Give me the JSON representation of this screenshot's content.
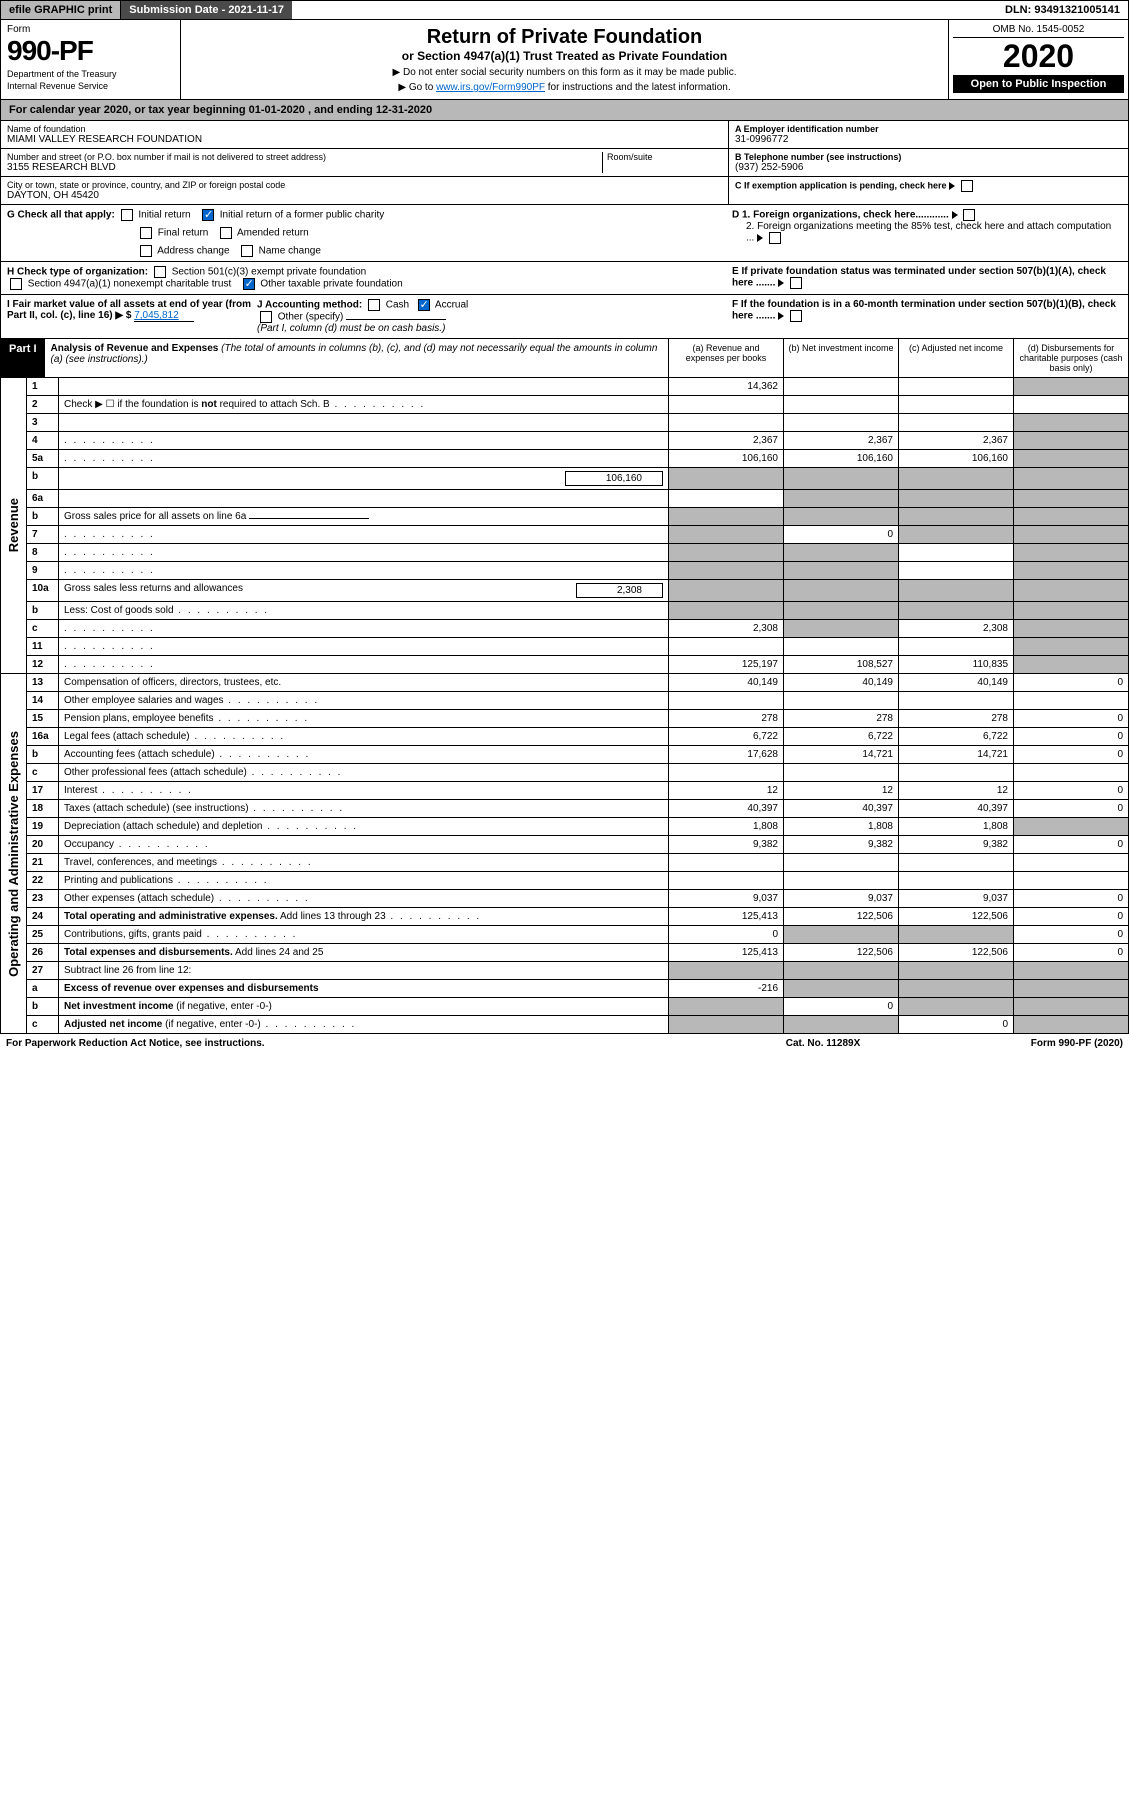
{
  "topbar": {
    "efile": "efile GRAPHIC print",
    "submission": "Submission Date - 2021-11-17",
    "dln": "DLN: 93491321005141"
  },
  "header": {
    "form_label": "Form",
    "form_number": "990-PF",
    "dept1": "Department of the Treasury",
    "dept2": "Internal Revenue Service",
    "title": "Return of Private Foundation",
    "subtitle": "or Section 4947(a)(1) Trust Treated as Private Foundation",
    "note1": "▶ Do not enter social security numbers on this form as it may be made public.",
    "note2_pre": "▶ Go to ",
    "note2_link": "www.irs.gov/Form990PF",
    "note2_post": " for instructions and the latest information.",
    "omb": "OMB No. 1545-0052",
    "year": "2020",
    "inspect": "Open to Public Inspection"
  },
  "cal_year": {
    "pre": "For calendar year 2020, or tax year beginning ",
    "begin": "01-01-2020",
    "mid": " , and ending ",
    "end": "12-31-2020"
  },
  "ident": {
    "name_label": "Name of foundation",
    "name_val": "MIAMI VALLEY RESEARCH FOUNDATION",
    "addr_label": "Number and street (or P.O. box number if mail is not delivered to street address)",
    "addr_val": "3155 RESEARCH BLVD",
    "room_label": "Room/suite",
    "city_label": "City or town, state or province, country, and ZIP or foreign postal code",
    "city_val": "DAYTON, OH  45420",
    "ein_label": "A Employer identification number",
    "ein_val": "31-0996772",
    "tel_label": "B Telephone number (see instructions)",
    "tel_val": "(937) 252-5906",
    "c_label": "C If exemption application is pending, check here",
    "d1": "D 1. Foreign organizations, check here............",
    "d2": "2. Foreign organizations meeting the 85% test, check here and attach computation ...",
    "e_label": "E If private foundation status was terminated under section 507(b)(1)(A), check here .......",
    "f_label": "F If the foundation is in a 60-month termination under section 507(b)(1)(B), check here ......."
  },
  "g": {
    "label": "G Check all that apply:",
    "initial": "Initial return",
    "initial_former": "Initial return of a former public charity",
    "final": "Final return",
    "amended": "Amended return",
    "addr_change": "Address change",
    "name_change": "Name change"
  },
  "h": {
    "label": "H Check type of organization:",
    "s501": "Section 501(c)(3) exempt private foundation",
    "s4947": "Section 4947(a)(1) nonexempt charitable trust",
    "other": "Other taxable private foundation"
  },
  "i": {
    "label": "I Fair market value of all assets at end of year (from Part II, col. (c), line 16) ▶ $",
    "val": "7,045,812"
  },
  "j": {
    "label": "J Accounting method:",
    "cash": "Cash",
    "accrual": "Accrual",
    "other": "Other (specify)",
    "note": "(Part I, column (d) must be on cash basis.)"
  },
  "part1": {
    "hdr": "Part I",
    "title": "Analysis of Revenue and Expenses",
    "note": " (The total of amounts in columns (b), (c), and (d) may not necessarily equal the amounts in column (a) (see instructions).)",
    "col_a": "(a) Revenue and expenses per books",
    "col_b": "(b) Net investment income",
    "col_c": "(c) Adjusted net income",
    "col_d": "(d) Disbursements for charitable purposes (cash basis only)"
  },
  "side_labels": {
    "revenue": "Revenue",
    "expenses": "Operating and Administrative Expenses"
  },
  "rows": [
    {
      "n": "1",
      "d": "",
      "a": "14,362",
      "b": "",
      "c": "",
      "dg": true
    },
    {
      "n": "2",
      "d": "Check ▶ ☐ if the foundation is <b>not</b> required to attach Sch. B",
      "dots": true,
      "nocols": true
    },
    {
      "n": "3",
      "d": "",
      "a": "",
      "b": "",
      "c": "",
      "dg": true
    },
    {
      "n": "4",
      "d": "",
      "dots": true,
      "a": "2,367",
      "b": "2,367",
      "c": "2,367",
      "dg": true
    },
    {
      "n": "5a",
      "d": "",
      "dots": true,
      "a": "106,160",
      "b": "106,160",
      "c": "106,160",
      "dg": true
    },
    {
      "n": "b",
      "d": "",
      "inset": "106,160",
      "a": "",
      "b": "",
      "c": "",
      "allgray": true
    },
    {
      "n": "6a",
      "d": "",
      "a": "",
      "b": "",
      "c": "",
      "bg": true,
      "cg": true,
      "dg": true
    },
    {
      "n": "b",
      "d": "Gross sales price for all assets on line 6a",
      "underline": true,
      "allgray": true
    },
    {
      "n": "7",
      "d": "",
      "dots": true,
      "a": "",
      "b": "0",
      "c": "",
      "ag": true,
      "cg": true,
      "dg": true
    },
    {
      "n": "8",
      "d": "",
      "dots": true,
      "a": "",
      "b": "",
      "c": "",
      "ag": true,
      "bg": true,
      "dg": true
    },
    {
      "n": "9",
      "d": "",
      "dots": true,
      "a": "",
      "b": "",
      "c": "",
      "ag": true,
      "bg": true,
      "dg": true
    },
    {
      "n": "10a",
      "d": "Gross sales less returns and allowances",
      "inset": "2,308",
      "allgray": true
    },
    {
      "n": "b",
      "d": "Less: Cost of goods sold",
      "dots": true,
      "allgray": true
    },
    {
      "n": "c",
      "d": "",
      "dots": true,
      "a": "2,308",
      "b": "",
      "c": "2,308",
      "bg": true,
      "dg": true
    },
    {
      "n": "11",
      "d": "",
      "dots": true,
      "a": "",
      "b": "",
      "c": "",
      "dg": true
    },
    {
      "n": "12",
      "d": "",
      "dots": true,
      "a": "125,197",
      "b": "108,527",
      "c": "110,835",
      "dg": true
    }
  ],
  "exp_rows": [
    {
      "n": "13",
      "d": "Compensation of officers, directors, trustees, etc.",
      "a": "40,149",
      "b": "40,149",
      "c": "40,149",
      "dd": "0"
    },
    {
      "n": "14",
      "d": "Other employee salaries and wages",
      "dots": true,
      "a": "",
      "b": "",
      "c": "",
      "dd": ""
    },
    {
      "n": "15",
      "d": "Pension plans, employee benefits",
      "dots": true,
      "a": "278",
      "b": "278",
      "c": "278",
      "dd": "0"
    },
    {
      "n": "16a",
      "d": "Legal fees (attach schedule)",
      "dots": true,
      "a": "6,722",
      "b": "6,722",
      "c": "6,722",
      "dd": "0"
    },
    {
      "n": "b",
      "d": "Accounting fees (attach schedule)",
      "dots": true,
      "a": "17,628",
      "b": "14,721",
      "c": "14,721",
      "dd": "0"
    },
    {
      "n": "c",
      "d": "Other professional fees (attach schedule)",
      "dots": true,
      "a": "",
      "b": "",
      "c": "",
      "dd": ""
    },
    {
      "n": "17",
      "d": "Interest",
      "dots": true,
      "a": "12",
      "b": "12",
      "c": "12",
      "dd": "0"
    },
    {
      "n": "18",
      "d": "Taxes (attach schedule) (see instructions)",
      "dots": true,
      "a": "40,397",
      "b": "40,397",
      "c": "40,397",
      "dd": "0"
    },
    {
      "n": "19",
      "d": "Depreciation (attach schedule) and depletion",
      "dots": true,
      "a": "1,808",
      "b": "1,808",
      "c": "1,808",
      "dd": "",
      "dg": true
    },
    {
      "n": "20",
      "d": "Occupancy",
      "dots": true,
      "a": "9,382",
      "b": "9,382",
      "c": "9,382",
      "dd": "0"
    },
    {
      "n": "21",
      "d": "Travel, conferences, and meetings",
      "dots": true,
      "a": "",
      "b": "",
      "c": "",
      "dd": ""
    },
    {
      "n": "22",
      "d": "Printing and publications",
      "dots": true,
      "a": "",
      "b": "",
      "c": "",
      "dd": ""
    },
    {
      "n": "23",
      "d": "Other expenses (attach schedule)",
      "dots": true,
      "a": "9,037",
      "b": "9,037",
      "c": "9,037",
      "dd": "0"
    },
    {
      "n": "24",
      "d": "<b>Total operating and administrative expenses.</b> Add lines 13 through 23",
      "dots": true,
      "a": "125,413",
      "b": "122,506",
      "c": "122,506",
      "dd": "0"
    },
    {
      "n": "25",
      "d": "Contributions, gifts, grants paid",
      "dots": true,
      "a": "0",
      "b": "",
      "c": "",
      "dd": "0",
      "bg": true,
      "cg": true
    },
    {
      "n": "26",
      "d": "<b>Total expenses and disbursements.</b> Add lines 24 and 25",
      "a": "125,413",
      "b": "122,506",
      "c": "122,506",
      "dd": "0"
    },
    {
      "n": "27",
      "d": "Subtract line 26 from line 12:",
      "allgray": true
    },
    {
      "n": "a",
      "d": "<b>Excess of revenue over expenses and disbursements</b>",
      "a": "-216",
      "b": "",
      "c": "",
      "dd": "",
      "bg": true,
      "cg": true,
      "dg": true
    },
    {
      "n": "b",
      "d": "<b>Net investment income</b> (if negative, enter -0-)",
      "a": "",
      "b": "0",
      "c": "",
      "dd": "",
      "ag": true,
      "cg": true,
      "dg": true
    },
    {
      "n": "c",
      "d": "<b>Adjusted net income</b> (if negative, enter -0-)",
      "dots": true,
      "a": "",
      "b": "",
      "c": "0",
      "dd": "",
      "ag": true,
      "bg": true,
      "dg": true
    }
  ],
  "footer": {
    "left": "For Paperwork Reduction Act Notice, see instructions.",
    "center": "Cat. No. 11289X",
    "right": "Form 990-PF (2020)"
  }
}
